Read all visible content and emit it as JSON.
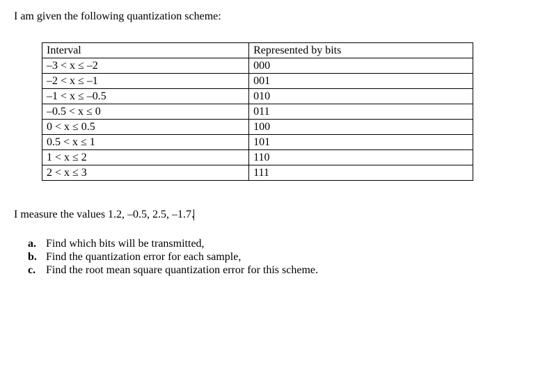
{
  "intro": "I am given the following quantization scheme:",
  "table": {
    "headers": {
      "interval": "Interval",
      "bits": "Represented by bits"
    },
    "rows": [
      {
        "interval": "–3 < x ≤ –2",
        "bits": "000"
      },
      {
        "interval": "–2 < x ≤ –1",
        "bits": "001"
      },
      {
        "interval": "–1 < x ≤ –0.5",
        "bits": "010"
      },
      {
        "interval": "–0.5 < x ≤ 0",
        "bits": "011"
      },
      {
        "interval": "0 < x ≤ 0.5",
        "bits": "100"
      },
      {
        "interval": "0.5 < x ≤ 1",
        "bits": "101"
      },
      {
        "interval": "1 < x ≤ 2",
        "bits": "110"
      },
      {
        "interval": "2 < x ≤ 3",
        "bits": "111"
      }
    ]
  },
  "measure": "I measure the values 1.2, –0.5, 2.5, –1.7.",
  "questions": [
    {
      "letter": "a.",
      "text": "Find which bits will be transmitted,"
    },
    {
      "letter": "b.",
      "text": "Find the quantization error for each sample,"
    },
    {
      "letter": "c.",
      "text": "Find the root mean square quantization error for this scheme."
    }
  ]
}
